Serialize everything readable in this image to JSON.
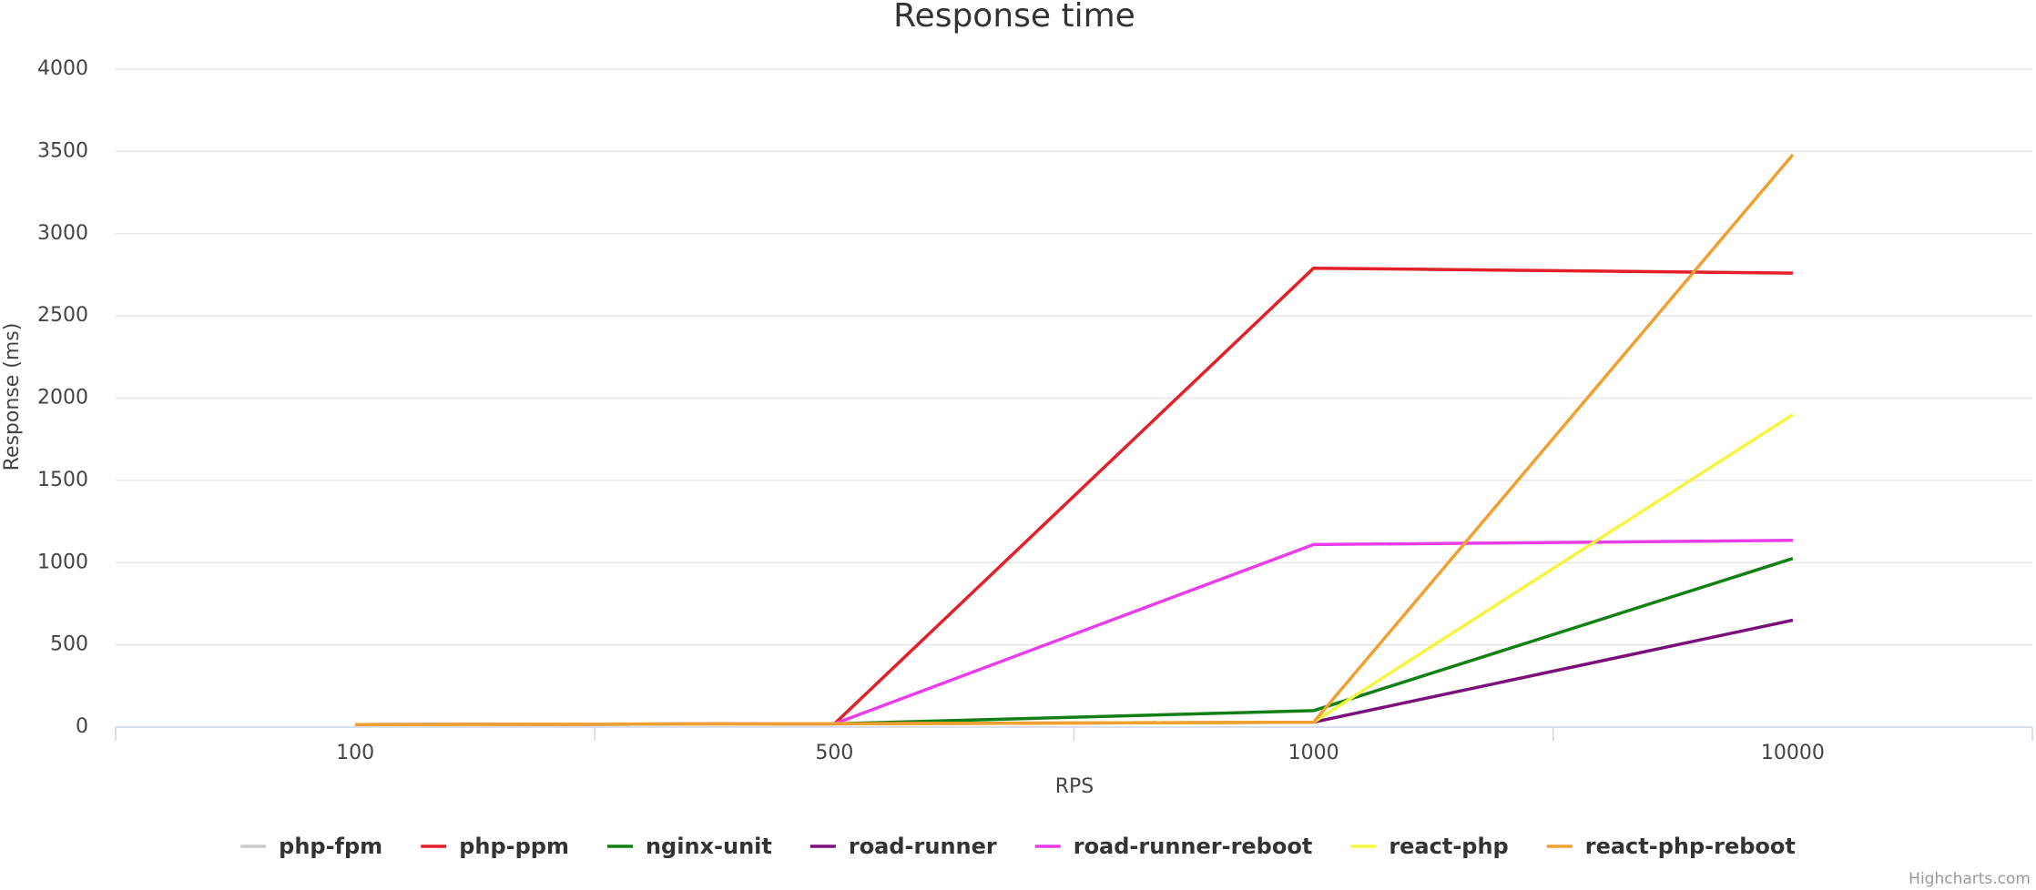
{
  "chart_data": {
    "type": "line",
    "title": "Response time",
    "x_label": "RPS",
    "y_label": "Response (ms)",
    "credits": "Highcharts.com",
    "categories": [
      "100",
      "500",
      "1000",
      "10000"
    ],
    "ylim": [
      0,
      4000
    ],
    "yticks": [
      0,
      500,
      1000,
      1500,
      2000,
      2500,
      3000,
      3500,
      4000
    ],
    "grid": true,
    "series": [
      {
        "name": "php-fpm",
        "color": "#cccccc",
        "visible": false,
        "values": [
          null,
          null,
          null,
          null
        ]
      },
      {
        "name": "php-ppm",
        "color": "#e3202a",
        "values": [
          15,
          20,
          2790,
          2760
        ]
      },
      {
        "name": "nginx-unit",
        "color": "#138015",
        "values": [
          15,
          20,
          100,
          1025
        ]
      },
      {
        "name": "road-runner",
        "color": "#7b107a",
        "values": [
          15,
          20,
          30,
          650
        ]
      },
      {
        "name": "road-runner-reboot",
        "color": "#e83de8",
        "values": [
          15,
          20,
          1110,
          1135
        ]
      },
      {
        "name": "react-php",
        "color": "#f5f542",
        "values": [
          15,
          20,
          30,
          1900
        ]
      },
      {
        "name": "react-php-reboot",
        "color": "#f0a030",
        "values": [
          15,
          20,
          30,
          3480
        ]
      }
    ]
  }
}
